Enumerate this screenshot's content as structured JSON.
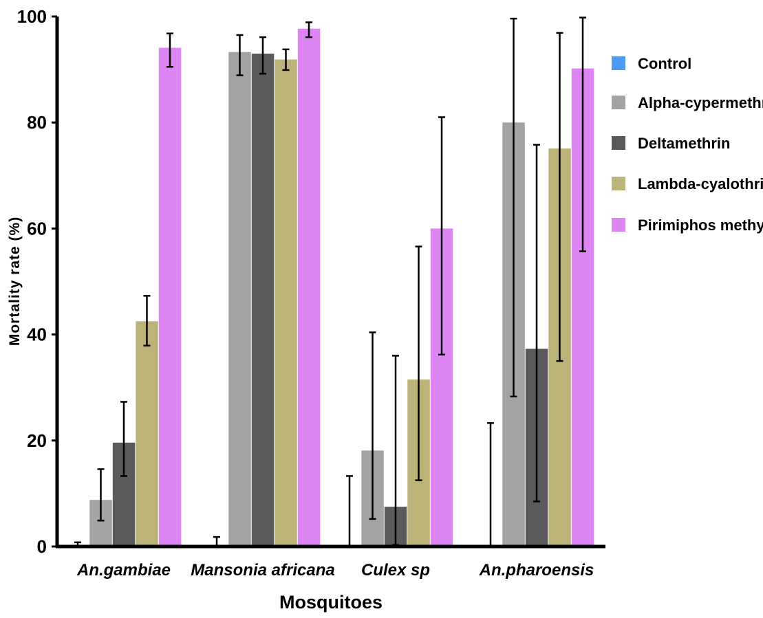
{
  "chart_data": {
    "type": "bar",
    "title": "",
    "xlabel": "Mosquitoes",
    "ylabel": "Mortality rate (%)",
    "ylim": [
      0,
      100
    ],
    "yticks": [
      0,
      20,
      40,
      60,
      80,
      100
    ],
    "grid": false,
    "legend_position": "right",
    "categories": [
      "An.gambiae",
      "Mansonia africana",
      "Culex sp",
      "An.pharoensis"
    ],
    "series": [
      {
        "name": "Control",
        "color": "#4a9df0",
        "values": [
          0,
          0,
          0,
          0
        ],
        "error_low": [
          0,
          0,
          0,
          0
        ],
        "error_high": [
          0.8,
          1.8,
          13.3,
          23.3
        ]
      },
      {
        "name": "Alpha-cypermethrin",
        "color": "#a3a3a6",
        "values": [
          8.8,
          93.3,
          18.1,
          80.0
        ],
        "error_low": [
          4.9,
          88.9,
          5.2,
          28.3
        ],
        "error_high": [
          14.6,
          96.5,
          40.4,
          99.6
        ]
      },
      {
        "name": "Deltamethrin",
        "color": "#5a5a5c",
        "values": [
          19.6,
          93.0,
          7.5,
          37.3
        ],
        "error_low": [
          13.3,
          89.2,
          0.3,
          8.5
        ],
        "error_high": [
          27.3,
          96.1,
          36.0,
          75.8
        ]
      },
      {
        "name": "Lambda-cyalothrin",
        "color": "#bcb379",
        "values": [
          42.5,
          91.9,
          31.5,
          75.1
        ],
        "error_low": [
          37.9,
          89.9,
          12.5,
          35.0
        ],
        "error_high": [
          47.3,
          93.8,
          56.6,
          96.9
        ]
      },
      {
        "name": "Pirimiphos methyl",
        "color": "#dd86f3",
        "values": [
          94.1,
          97.7,
          60.0,
          90.2
        ],
        "error_low": [
          90.5,
          96.1,
          36.2,
          55.7
        ],
        "error_high": [
          96.8,
          98.9,
          81.0,
          99.8
        ]
      }
    ]
  }
}
